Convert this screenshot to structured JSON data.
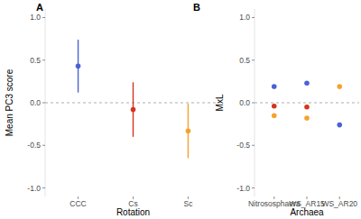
{
  "chart_data": [
    {
      "type": "scatter",
      "title": "A",
      "x_label": "Rotation",
      "y_label": "Mean PC3 score",
      "categories": [
        "CCC",
        "Cs",
        "Sc"
      ],
      "values": [
        0.43,
        -0.08,
        -0.33
      ],
      "errors": [
        0.31,
        0.32,
        0.32
      ],
      "colors": [
        "#4a62d4",
        "#d4351c",
        "#f4a22d"
      ],
      "ylim": [
        -1.1,
        1.1
      ],
      "yticks": [
        {
          "value": -1,
          "label": "-1.0"
        },
        -0.5,
        {
          "value": 0,
          "label": "0.0"
        },
        0.5,
        {
          "value": 1,
          "label": "1.0"
        }
      ],
      "grid": false
    },
    {
      "type": "scatter",
      "title": "B",
      "x_label": "Archaea",
      "y_label": "MxL",
      "categories": [
        "Nitrososphaera",
        "WS_AR15",
        "WS_AR20"
      ],
      "series": [
        {
          "color": "#4a62d4",
          "values": [
            0.19,
            0.23,
            -0.26
          ]
        },
        {
          "color": "#d4351c",
          "values": [
            -0.04,
            -0.05,
            null
          ]
        },
        {
          "color": "#f4a22d",
          "values": [
            -0.15,
            -0.18,
            0.19
          ]
        }
      ],
      "ylim": [
        -1.1,
        1.1
      ],
      "yticks": [
        {
          "value": -1,
          "label": "-1.0"
        },
        -0.5,
        {
          "value": 0,
          "label": "0.0"
        },
        0.5,
        {
          "value": 1,
          "label": "1.0"
        }
      ],
      "grid": false
    }
  ]
}
